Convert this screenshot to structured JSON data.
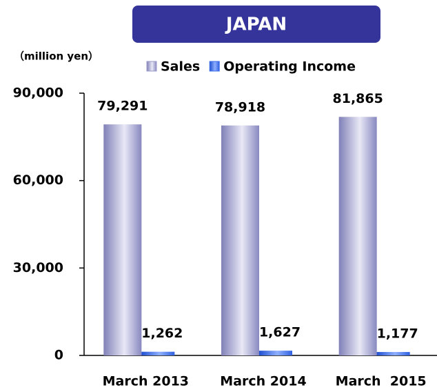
{
  "chart_data": {
    "type": "bar",
    "title": "JAPAN",
    "unit_label": "（million yen）",
    "categories": [
      "March 2013",
      "March 2014",
      "March  2015"
    ],
    "series": [
      {
        "name": "Sales",
        "color": "#9a9ac8",
        "values": [
          79291,
          78918,
          81865
        ],
        "value_labels": [
          "79,291",
          "78,918",
          "81,865"
        ]
      },
      {
        "name": "Operating Income",
        "color": "#3a6ee8",
        "values": [
          1262,
          1627,
          1177
        ],
        "value_labels": [
          "1,262",
          "1,627",
          "1,177"
        ]
      }
    ],
    "ylim": [
      0,
      90000
    ],
    "yticks": [
      {
        "value": 0,
        "label": "0"
      },
      {
        "value": 30000,
        "label": "30,000"
      },
      {
        "value": 60000,
        "label": "60,000"
      },
      {
        "value": 90000,
        "label": "90,000"
      }
    ]
  }
}
